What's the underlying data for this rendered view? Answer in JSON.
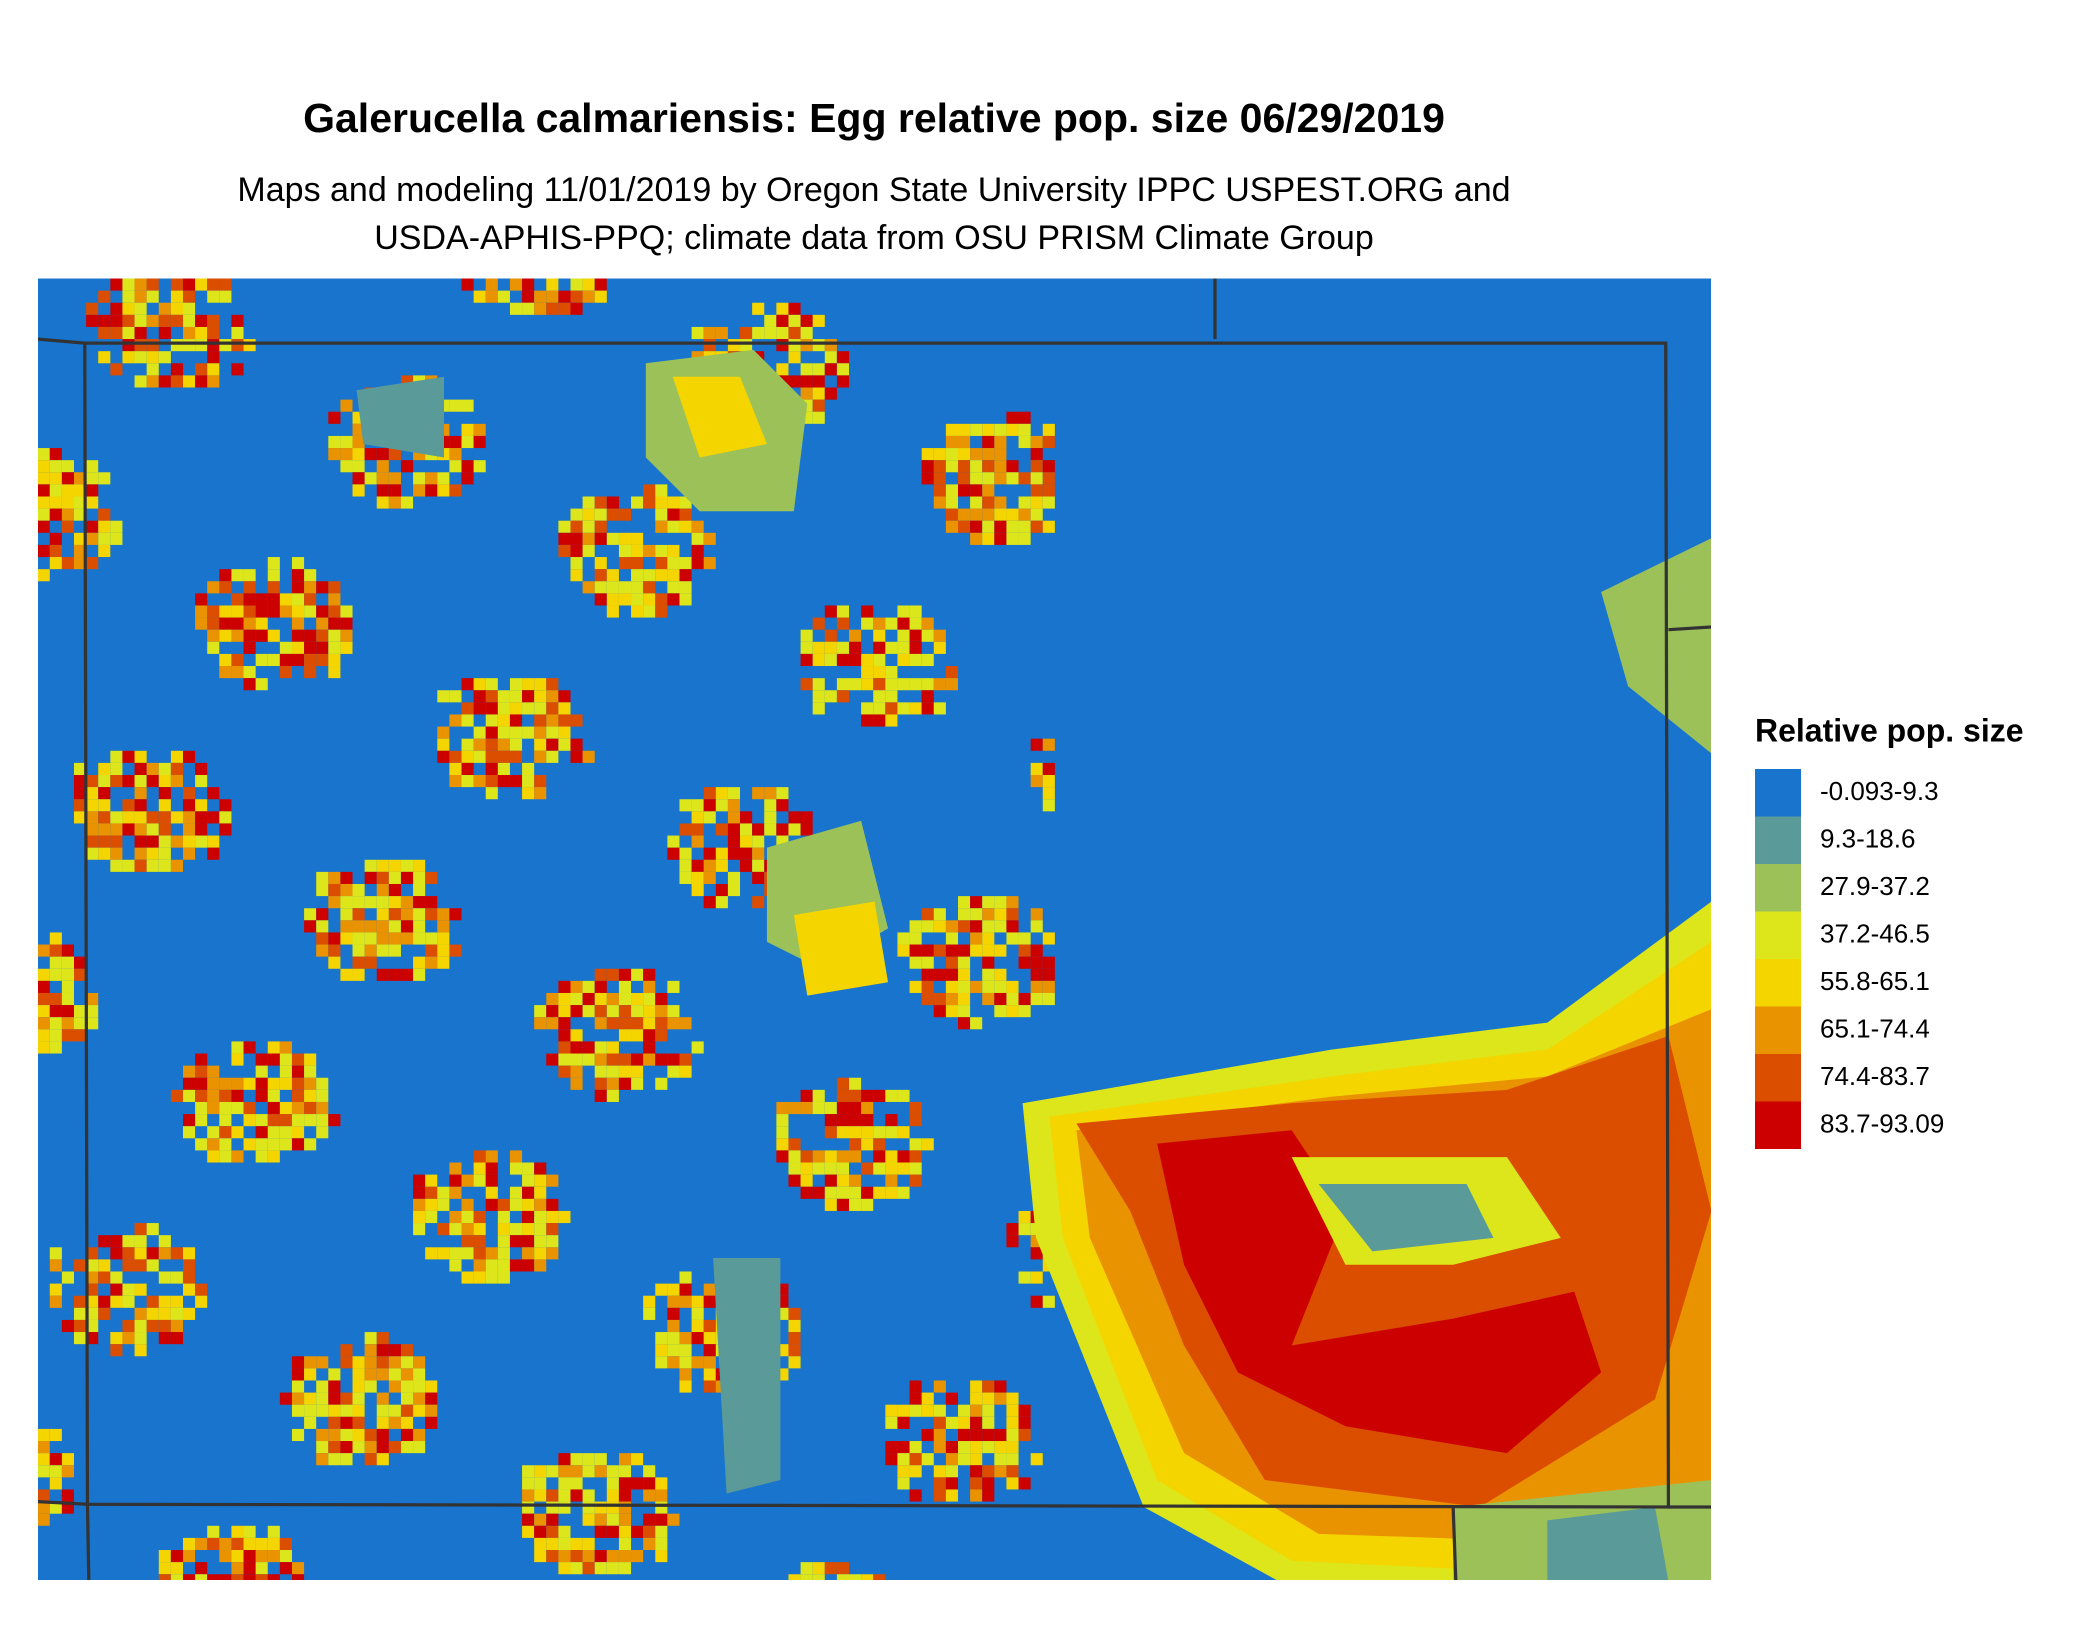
{
  "header": {
    "title": "Galerucella calmariensis: Egg relative pop. size 06/29/2019",
    "subtitle": [
      "Maps and modeling 11/01/2019 by Oregon State University IPPC USPEST.ORG and",
      "USDA-APHIS-PPQ; climate data from OSU PRISM Climate Group"
    ]
  },
  "legend": {
    "title": "Relative pop. size",
    "items": [
      {
        "label": "-0.093-9.3",
        "color": "#1874cd"
      },
      {
        "label": "9.3-18.6",
        "color": "#5a9a98"
      },
      {
        "label": "27.9-37.2",
        "color": "#9cc159"
      },
      {
        "label": "37.2-46.5",
        "color": "#dce61a"
      },
      {
        "label": "55.8-65.1",
        "color": "#f4d500"
      },
      {
        "label": "65.1-74.4",
        "color": "#ea9300"
      },
      {
        "label": "74.4-83.7",
        "color": "#db4e00"
      },
      {
        "label": "83.7-93.09",
        "color": "#cd0000"
      }
    ]
  }
}
